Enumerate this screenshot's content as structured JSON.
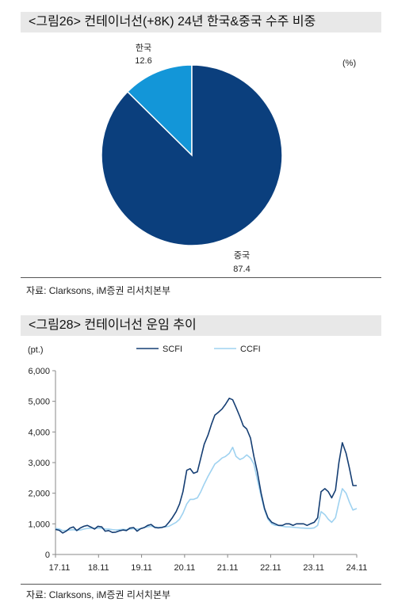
{
  "figure1": {
    "title": "<그림26> 컨테이너선(+8K) 24년 한국&중국 수주 비중",
    "unit": "(%)",
    "source": "자료: Clarksons, iM증권 리서치본부"
  },
  "figure2": {
    "title": "<그림28> 컨테이너선 운임 추이",
    "unit": "(pt.)",
    "source": "자료: Clarksons, iM증권 리서치본부"
  },
  "colors": {
    "korea": "#1396d8",
    "china": "#0b3f7d",
    "scfi": "#153e73",
    "ccfi": "#9fd2f0",
    "axis": "#888888"
  },
  "chart_data": [
    {
      "type": "pie",
      "labels": [
        "한국",
        "중국"
      ],
      "values": [
        12.6,
        87.4
      ],
      "value_labels": [
        "12.6",
        "87.4"
      ]
    },
    {
      "type": "line",
      "x_ticks": [
        "17.11",
        "18.11",
        "19.11",
        "20.11",
        "21.11",
        "22.11",
        "23.11",
        "24.11"
      ],
      "y_ticks": [
        "0",
        "1,000",
        "2,000",
        "3,000",
        "4,000",
        "5,000",
        "6,000"
      ],
      "ylim": [
        0,
        6000
      ],
      "series": [
        {
          "name": "SCFI",
          "x": [
            2017.83,
            2017.92,
            2018.0,
            2018.08,
            2018.17,
            2018.25,
            2018.33,
            2018.42,
            2018.5,
            2018.58,
            2018.67,
            2018.75,
            2018.83,
            2018.92,
            2019.0,
            2019.08,
            2019.17,
            2019.25,
            2019.33,
            2019.42,
            2019.5,
            2019.58,
            2019.67,
            2019.75,
            2019.83,
            2019.92,
            2020.0,
            2020.08,
            2020.17,
            2020.25,
            2020.33,
            2020.42,
            2020.5,
            2020.58,
            2020.67,
            2020.75,
            2020.83,
            2020.92,
            2021.0,
            2021.08,
            2021.17,
            2021.25,
            2021.33,
            2021.42,
            2021.5,
            2021.58,
            2021.67,
            2021.75,
            2021.83,
            2021.92,
            2022.0,
            2022.08,
            2022.17,
            2022.25,
            2022.33,
            2022.42,
            2022.5,
            2022.58,
            2022.67,
            2022.75,
            2022.83,
            2022.92,
            2023.0,
            2023.08,
            2023.17,
            2023.25,
            2023.33,
            2023.42,
            2023.5,
            2023.58,
            2023.67,
            2023.75,
            2023.83,
            2023.92,
            2024.0,
            2024.08,
            2024.17,
            2024.25,
            2024.33,
            2024.42,
            2024.5,
            2024.58,
            2024.67,
            2024.75,
            2024.83,
            2024.92
          ],
          "y": [
            820,
            790,
            700,
            760,
            860,
            900,
            780,
            870,
            920,
            950,
            890,
            830,
            920,
            900,
            760,
            780,
            720,
            730,
            770,
            800,
            780,
            860,
            880,
            760,
            840,
            880,
            950,
            980,
            880,
            870,
            880,
            920,
            1050,
            1200,
            1400,
            1650,
            2050,
            2750,
            2800,
            2650,
            2700,
            3150,
            3600,
            3900,
            4250,
            4550,
            4650,
            4750,
            4900,
            5100,
            5050,
            4800,
            4500,
            4200,
            4100,
            3800,
            3200,
            2700,
            2000,
            1500,
            1200,
            1050,
            1000,
            950,
            950,
            1000,
            1000,
            950,
            1000,
            1000,
            1000,
            950,
            1000,
            1050,
            1200,
            2050,
            2150,
            2050,
            1850,
            2100,
            3000,
            3650,
            3300,
            2800,
            2250,
            2250
          ]
        },
        {
          "name": "CCFI",
          "x": [
            2017.83,
            2017.92,
            2018.0,
            2018.08,
            2018.17,
            2018.25,
            2018.33,
            2018.42,
            2018.5,
            2018.58,
            2018.67,
            2018.75,
            2018.83,
            2018.92,
            2019.0,
            2019.08,
            2019.17,
            2019.25,
            2019.33,
            2019.42,
            2019.5,
            2019.58,
            2019.67,
            2019.75,
            2019.83,
            2019.92,
            2020.0,
            2020.08,
            2020.17,
            2020.25,
            2020.33,
            2020.42,
            2020.5,
            2020.58,
            2020.67,
            2020.75,
            2020.83,
            2020.92,
            2021.0,
            2021.08,
            2021.17,
            2021.25,
            2021.33,
            2021.42,
            2021.5,
            2021.58,
            2021.67,
            2021.75,
            2021.83,
            2021.92,
            2022.0,
            2022.08,
            2022.17,
            2022.25,
            2022.33,
            2022.42,
            2022.5,
            2022.58,
            2022.67,
            2022.75,
            2022.83,
            2022.92,
            2023.0,
            2023.08,
            2023.17,
            2023.25,
            2023.33,
            2023.42,
            2023.5,
            2023.58,
            2023.67,
            2023.75,
            2023.83,
            2023.92,
            2024.0,
            2024.08,
            2024.17,
            2024.25,
            2024.33,
            2024.42,
            2024.5,
            2024.58,
            2024.67,
            2024.75,
            2024.83,
            2024.92
          ],
          "y": [
            850,
            830,
            780,
            790,
            800,
            810,
            790,
            800,
            830,
            850,
            860,
            850,
            860,
            850,
            830,
            830,
            810,
            800,
            810,
            820,
            810,
            830,
            840,
            830,
            840,
            880,
            900,
            920,
            900,
            880,
            890,
            900,
            920,
            980,
            1050,
            1150,
            1350,
            1650,
            1800,
            1800,
            1850,
            2050,
            2300,
            2550,
            2750,
            2950,
            3050,
            3150,
            3200,
            3300,
            3500,
            3200,
            3100,
            3150,
            3250,
            3150,
            2950,
            2450,
            1900,
            1450,
            1150,
            1000,
            950,
            950,
            920,
            900,
            900,
            890,
            880,
            870,
            860,
            850,
            850,
            870,
            950,
            1400,
            1300,
            1150,
            1050,
            1200,
            1700,
            2150,
            2000,
            1700,
            1450,
            1500
          ]
        }
      ]
    }
  ]
}
